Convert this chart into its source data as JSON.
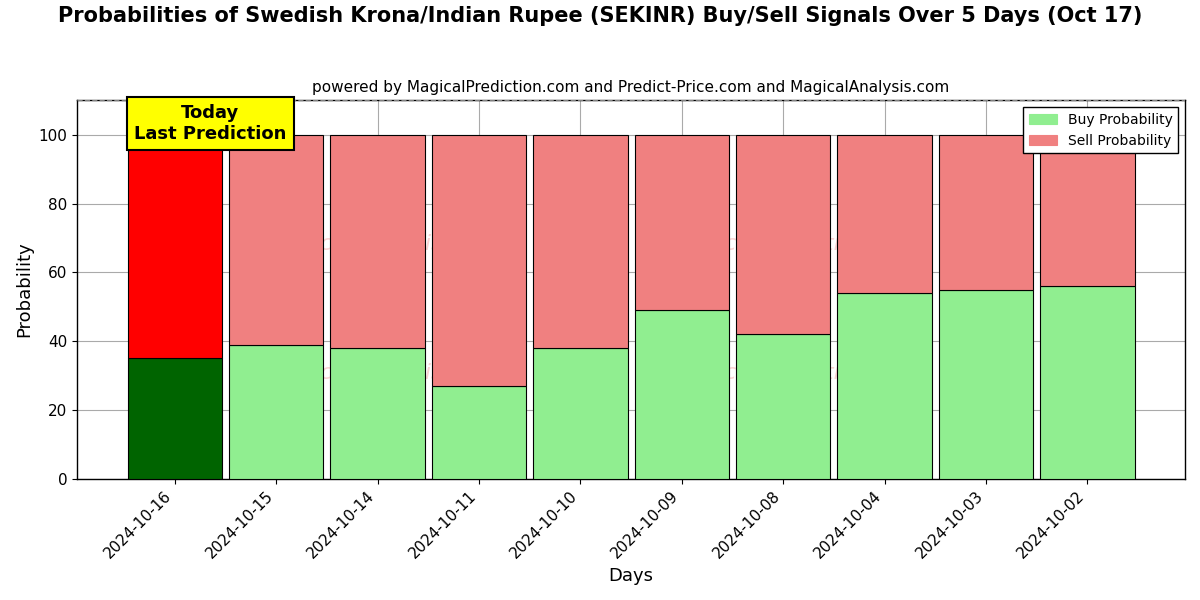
{
  "title": "Probabilities of Swedish Krona/Indian Rupee (SEKINR) Buy/Sell Signals Over 5 Days (Oct 17)",
  "subtitle": "powered by MagicalPrediction.com and Predict-Price.com and MagicalAnalysis.com",
  "xlabel": "Days",
  "ylabel": "Probability",
  "watermark_left": "MagicalAnalysis.com",
  "watermark_right": "MagicalPrediction.com",
  "watermark2_left": "MagicalAnalysis.com",
  "watermark2_right": "MagicalPrediction.com",
  "categories": [
    "2024-10-16",
    "2024-10-15",
    "2024-10-14",
    "2024-10-11",
    "2024-10-10",
    "2024-10-09",
    "2024-10-08",
    "2024-10-04",
    "2024-10-03",
    "2024-10-02"
  ],
  "buy_values": [
    35,
    39,
    38,
    27,
    38,
    49,
    42,
    54,
    55,
    56
  ],
  "sell_values": [
    65,
    61,
    62,
    73,
    62,
    51,
    58,
    46,
    45,
    44
  ],
  "today_bar_buy_color": "#006400",
  "today_bar_sell_color": "#FF0000",
  "other_bar_buy_color": "#90EE90",
  "other_bar_sell_color": "#F08080",
  "today_annotation_bg": "#FFFF00",
  "today_annotation_text": "Today\nLast Prediction",
  "ylim": [
    0,
    110
  ],
  "dashed_line_y": 110,
  "legend_buy_label": "Buy Probability",
  "legend_sell_label": "Sell Probability",
  "legend_buy_color": "#90EE90",
  "legend_sell_color": "#F08080",
  "bg_color": "#ffffff",
  "grid_color": "#aaaaaa",
  "title_fontsize": 15,
  "subtitle_fontsize": 11,
  "axis_label_fontsize": 13,
  "tick_fontsize": 11,
  "bar_width": 0.93,
  "bar_edge_color": "#000000",
  "bar_edge_width": 0.8
}
